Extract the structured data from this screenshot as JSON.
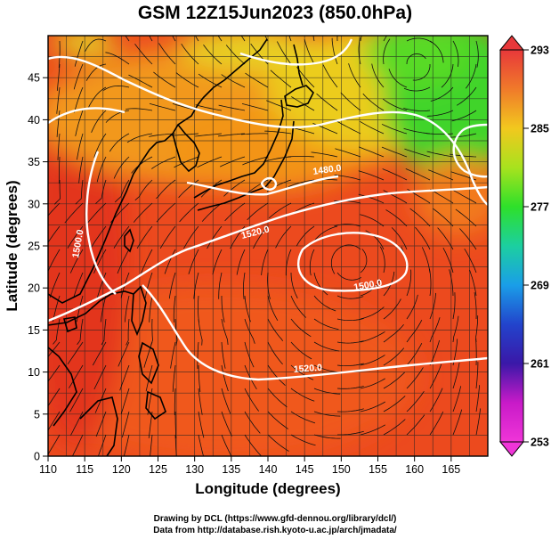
{
  "title": "GSM 12Z15Jun2023 (850.0hPa)",
  "xlabel": "Longitude (degrees)",
  "ylabel": "Latitude  (degrees)",
  "credits": [
    "Drawing by DCL (https://www.gfd-dennou.org/library/dcl/)",
    "Data from http://database.rish.kyoto-u.ac.jp/arch/jmadata/"
  ],
  "map": {
    "lon_range": [
      110,
      170
    ],
    "lat_range": [
      0,
      50
    ],
    "lon_ticks": [
      "110",
      "115",
      "120",
      "125",
      "130",
      "135",
      "140",
      "145",
      "150",
      "155",
      "160",
      "165"
    ],
    "lat_ticks": [
      "0",
      "5",
      "10",
      "15",
      "20",
      "25",
      "30",
      "35",
      "40",
      "45"
    ],
    "gridlines": "on",
    "field": "temperature shading with geopotential height contours and streamlines"
  },
  "colorbar": {
    "tick_labels": [
      "293",
      "285",
      "277",
      "269",
      "261",
      "253"
    ],
    "colors_top_to_bottom": [
      "#e8383a",
      "#f07a2a",
      "#f2c81e",
      "#a8e21e",
      "#2ee02a",
      "#1ccfa0",
      "#1a9ee8",
      "#2244cc",
      "#3a18a8",
      "#c81ac8",
      "#f035d8"
    ]
  },
  "contour_labels": [
    "1480.0",
    "1520.0",
    "1500.0",
    "1520.0",
    "1500.0"
  ],
  "colors": {
    "hot": "#e8431e",
    "warm": "#f46a1e",
    "orange": "#f5a21a",
    "yellow": "#eed21a",
    "green": "#36d62a",
    "coast": "#000000",
    "contour": "#ffffff"
  }
}
